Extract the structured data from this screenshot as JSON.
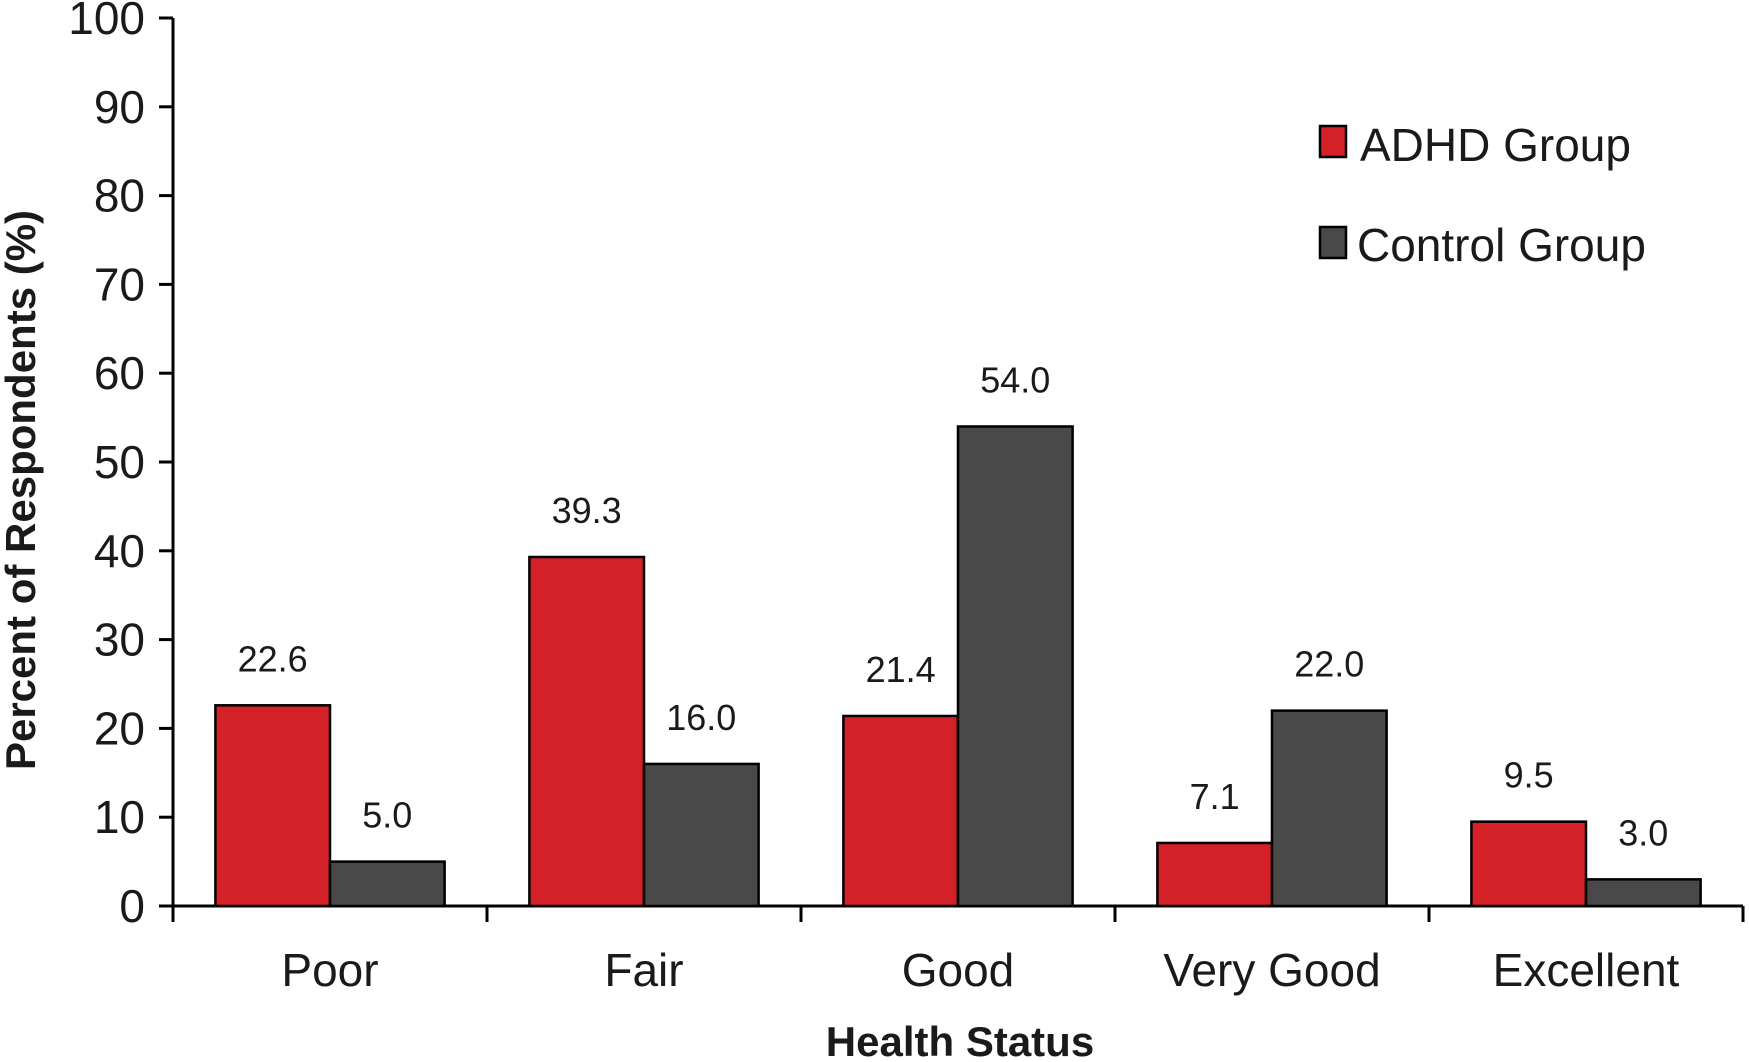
{
  "chart_data": {
    "type": "bar",
    "title": "",
    "xlabel": "Health Status",
    "ylabel": "Percent of Respondents (%)",
    "ylim": [
      0,
      100
    ],
    "yticks": [
      "0",
      "10",
      "20",
      "30",
      "40",
      "50",
      "60",
      "70",
      "80",
      "90",
      "100"
    ],
    "categories": [
      "Poor",
      "Fair",
      "Good",
      "Very Good",
      "Excellent"
    ],
    "series": [
      {
        "name": "ADHD Group",
        "color": "#d42027",
        "values": [
          22.6,
          39.3,
          21.4,
          7.1,
          9.5
        ],
        "labels": [
          "22.6",
          "39.3",
          "21.4",
          "7.1",
          "9.5"
        ]
      },
      {
        "name": "Control Group",
        "color": "#494949",
        "values": [
          5.0,
          16.0,
          54.0,
          22.0,
          3.0
        ],
        "labels": [
          "5.0",
          "16.0",
          "54.0",
          "22.0",
          "3.0"
        ]
      }
    ],
    "grid": false,
    "legend_position": "top-right"
  }
}
